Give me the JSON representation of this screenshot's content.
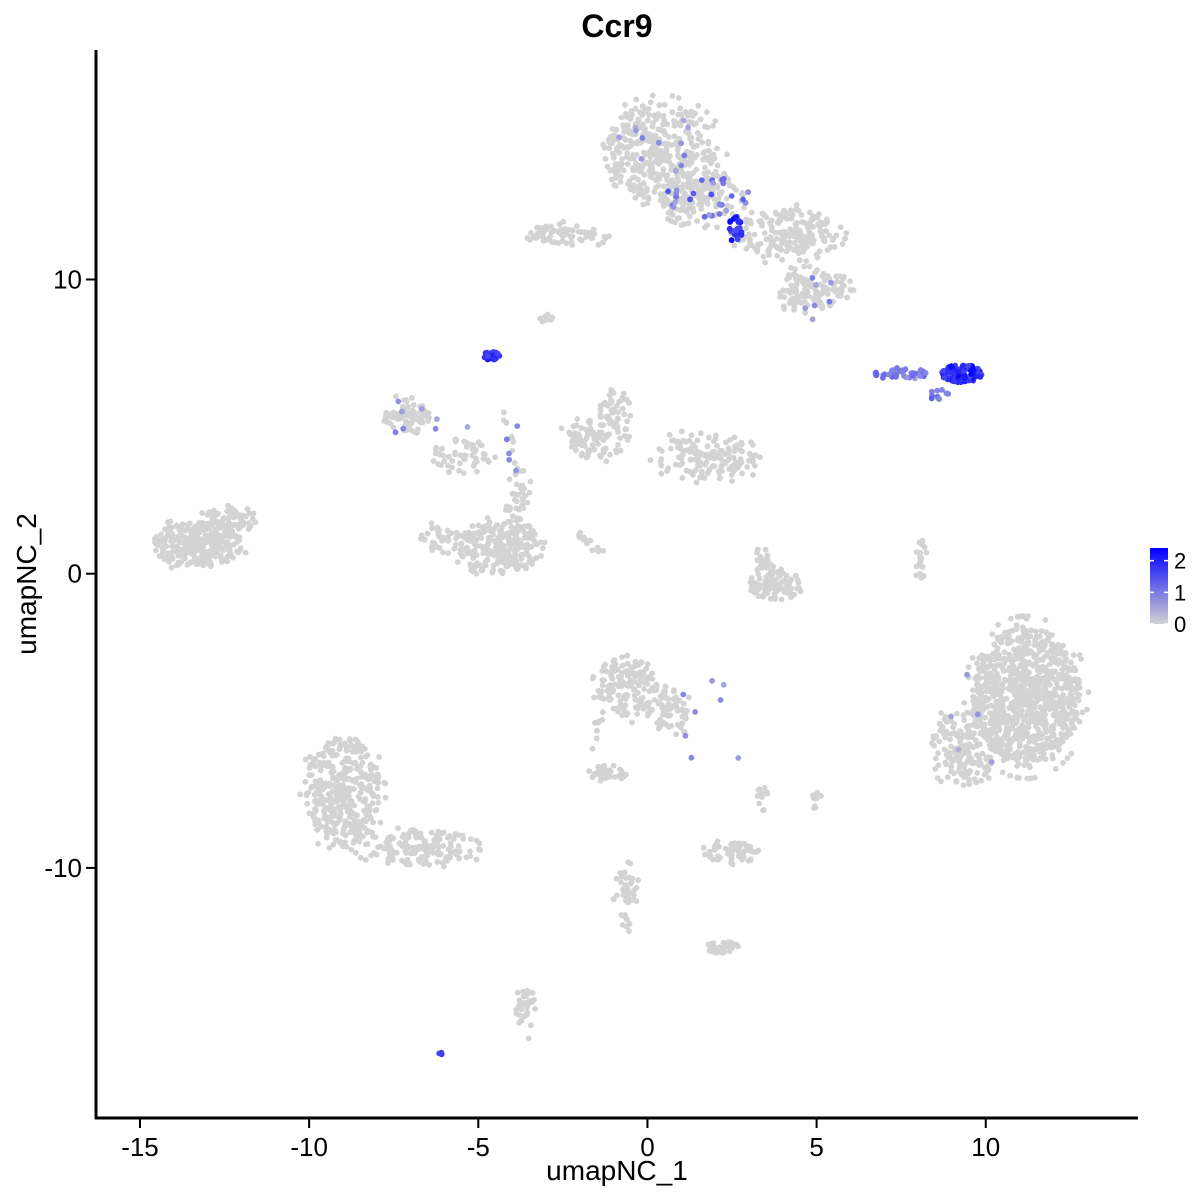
{
  "chart_data": {
    "type": "scatter",
    "title": "Ccr9",
    "xlabel": "umapNC_1",
    "ylabel": "umapNC_2",
    "xlim": [
      -16.3,
      14.5
    ],
    "ylim": [
      -18.5,
      17.8
    ],
    "x_ticks": [
      -15,
      -10,
      -5,
      0,
      5,
      10
    ],
    "x_tick_labels": [
      "-15",
      "-10",
      "-5",
      "0",
      "5",
      "10"
    ],
    "y_ticks": [
      -10,
      0,
      10
    ],
    "y_tick_labels": [
      "-10",
      "0",
      "10"
    ],
    "grid": false,
    "legend": {
      "placement": "right",
      "type": "colorbar",
      "ticks": [
        0,
        1,
        2
      ],
      "tick_labels": [
        "0",
        "1",
        "2"
      ],
      "range": [
        0,
        2.4
      ],
      "low_color": "#D3D3D3",
      "high_color": "#0000FF"
    },
    "clusters": [
      {
        "cx": 0.4,
        "cy": 14.2,
        "rx": 1.7,
        "ry": 1.8,
        "n": 420
      },
      {
        "cx": 1.6,
        "cy": 12.7,
        "rx": 1.3,
        "ry": 1.0,
        "n": 120
      },
      {
        "cx": 4.3,
        "cy": 11.5,
        "rx": 1.6,
        "ry": 0.9,
        "n": 190
      },
      {
        "cx": 5.3,
        "cy": 9.7,
        "rx": 0.8,
        "ry": 0.6,
        "n": 80
      },
      {
        "cx": 4.4,
        "cy": 9.6,
        "rx": 0.5,
        "ry": 1.0,
        "n": 50
      },
      {
        "cx": -2.6,
        "cy": 11.6,
        "rx": 0.9,
        "ry": 0.4,
        "n": 60
      },
      {
        "cx": -1.6,
        "cy": 11.4,
        "rx": 0.5,
        "ry": 0.2,
        "n": 12
      },
      {
        "cx": -3.0,
        "cy": 8.7,
        "rx": 0.2,
        "ry": 0.15,
        "n": 8
      },
      {
        "cx": -7.1,
        "cy": 5.4,
        "rx": 0.7,
        "ry": 0.6,
        "n": 70
      },
      {
        "cx": -5.5,
        "cy": 4.0,
        "rx": 1.0,
        "ry": 0.6,
        "n": 55
      },
      {
        "cx": -1.5,
        "cy": 4.6,
        "rx": 1.0,
        "ry": 0.7,
        "n": 90
      },
      {
        "cx": 1.8,
        "cy": 4.0,
        "rx": 1.6,
        "ry": 0.8,
        "n": 150
      },
      {
        "cx": -0.9,
        "cy": 5.6,
        "rx": 0.5,
        "ry": 0.6,
        "n": 40
      },
      {
        "cx": -3.8,
        "cy": 2.5,
        "rx": 0.4,
        "ry": 1.4,
        "n": 45
      },
      {
        "cx": -4.3,
        "cy": 0.9,
        "rx": 1.3,
        "ry": 0.9,
        "n": 240
      },
      {
        "cx": -6.1,
        "cy": 1.2,
        "rx": 0.6,
        "ry": 0.5,
        "n": 40
      },
      {
        "cx": -13.3,
        "cy": 1.0,
        "rx": 1.3,
        "ry": 0.8,
        "n": 300
      },
      {
        "cx": -12.3,
        "cy": 1.9,
        "rx": 0.8,
        "ry": 0.4,
        "n": 60
      },
      {
        "cx": 3.8,
        "cy": -0.4,
        "rx": 0.8,
        "ry": 0.5,
        "n": 90
      },
      {
        "cx": 3.4,
        "cy": 0.5,
        "rx": 0.4,
        "ry": 0.6,
        "n": 25
      },
      {
        "cx": 8.1,
        "cy": 0.5,
        "rx": 0.2,
        "ry": 0.9,
        "n": 20
      },
      {
        "cx": 11.2,
        "cy": -4.2,
        "rx": 1.6,
        "ry": 2.4,
        "n": 950
      },
      {
        "cx": 9.4,
        "cy": -5.9,
        "rx": 1.0,
        "ry": 1.3,
        "n": 180
      },
      {
        "cx": -0.6,
        "cy": -3.8,
        "rx": 0.9,
        "ry": 1.1,
        "n": 150
      },
      {
        "cx": 0.6,
        "cy": -4.6,
        "rx": 0.6,
        "ry": 0.8,
        "n": 60
      },
      {
        "cx": -1.2,
        "cy": -6.8,
        "rx": 0.6,
        "ry": 0.3,
        "n": 40
      },
      {
        "cx": -9.0,
        "cy": -7.4,
        "rx": 1.1,
        "ry": 1.9,
        "n": 380
      },
      {
        "cx": -6.7,
        "cy": -9.3,
        "rx": 1.8,
        "ry": 0.6,
        "n": 160
      },
      {
        "cx": 2.5,
        "cy": -9.5,
        "rx": 0.8,
        "ry": 0.4,
        "n": 55
      },
      {
        "cx": 2.2,
        "cy": -12.7,
        "rx": 0.6,
        "ry": 0.2,
        "n": 30
      },
      {
        "cx": -0.6,
        "cy": -10.9,
        "rx": 0.35,
        "ry": 1.3,
        "n": 45
      },
      {
        "cx": -3.6,
        "cy": -14.8,
        "rx": 0.3,
        "ry": 0.9,
        "n": 35
      },
      {
        "cx": 3.4,
        "cy": -7.6,
        "rx": 0.15,
        "ry": 0.5,
        "n": 12
      },
      {
        "cx": 5.0,
        "cy": -7.6,
        "rx": 0.15,
        "ry": 0.4,
        "n": 10
      }
    ],
    "strands": [
      {
        "x1": -2.1,
        "y1": 1.4,
        "x2": -1.3,
        "y2": 0.7,
        "n": 16
      },
      {
        "x1": -4.2,
        "y1": 5.5,
        "x2": -3.8,
        "y2": 3.4,
        "n": 10
      },
      {
        "x1": 0.9,
        "y1": -4.9,
        "x2": 1.1,
        "y2": -5.6,
        "n": 5
      },
      {
        "x1": -1.4,
        "y1": -4.9,
        "x2": -1.7,
        "y2": -6.3,
        "n": 8
      }
    ],
    "high_groups": [
      {
        "cx": 9.3,
        "cy": 6.8,
        "rx": 0.6,
        "ry": 0.3,
        "n": 120,
        "vmin": 1.5,
        "vmax": 2.4
      },
      {
        "cx": 7.5,
        "cy": 6.8,
        "rx": 0.8,
        "ry": 0.2,
        "n": 40,
        "vmin": 0.6,
        "vmax": 1.3
      },
      {
        "cx": 8.6,
        "cy": 6.1,
        "rx": 0.3,
        "ry": 0.2,
        "n": 10,
        "vmin": 0.8,
        "vmax": 1.5
      },
      {
        "cx": -4.6,
        "cy": 7.4,
        "rx": 0.25,
        "ry": 0.15,
        "n": 30,
        "vmin": 1.6,
        "vmax": 2.2
      },
      {
        "cx": 2.6,
        "cy": 11.7,
        "rx": 0.2,
        "ry": 0.5,
        "n": 25,
        "vmin": 1.5,
        "vmax": 2.3
      },
      {
        "cx": 1.8,
        "cy": 12.8,
        "rx": 1.3,
        "ry": 0.7,
        "n": 28,
        "vmin": 0.5,
        "vmax": 1.5
      },
      {
        "cx": 0.5,
        "cy": 14.5,
        "rx": 1.6,
        "ry": 1.0,
        "n": 12,
        "vmin": 0.4,
        "vmax": 1.0
      },
      {
        "cx": -6.5,
        "cy": 5.3,
        "rx": 1.3,
        "ry": 0.8,
        "n": 8,
        "vmin": 0.5,
        "vmax": 1.0
      },
      {
        "cx": -3.9,
        "cy": 4.5,
        "rx": 0.3,
        "ry": 1.0,
        "n": 5,
        "vmin": 0.6,
        "vmax": 1.0
      },
      {
        "cx": 4.8,
        "cy": 9.3,
        "rx": 0.8,
        "ry": 1.0,
        "n": 7,
        "vmin": 0.5,
        "vmax": 1.0
      },
      {
        "cx": -6.1,
        "cy": -16.3,
        "rx": 0.1,
        "ry": 0.05,
        "n": 3,
        "vmin": 1.4,
        "vmax": 1.8
      },
      {
        "cx": 2.0,
        "cy": -5.0,
        "rx": 2.0,
        "ry": 1.5,
        "n": 8,
        "vmin": 0.5,
        "vmax": 0.9
      },
      {
        "cx": 10.0,
        "cy": -5.0,
        "rx": 1.5,
        "ry": 1.8,
        "n": 5,
        "vmin": 0.4,
        "vmax": 0.8
      }
    ]
  }
}
